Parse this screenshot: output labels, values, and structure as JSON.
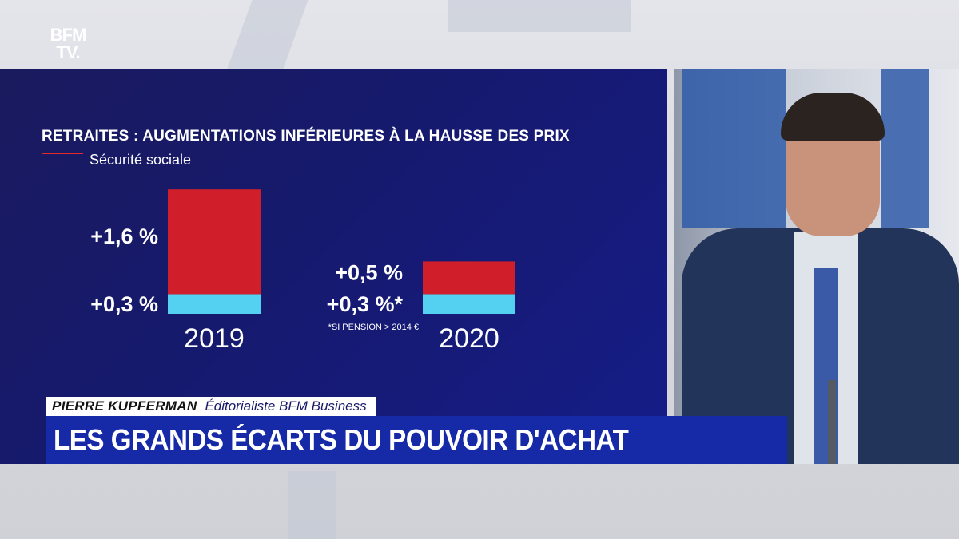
{
  "channel": {
    "logo_line1": "BFM",
    "logo_line2": "TV."
  },
  "chart_data": {
    "type": "bar",
    "title": "RETRAITES : AUGMENTATIONS INFÉRIEURES À LA HAUSSE DES PRIX",
    "legend": [
      {
        "name": "Sécurité sociale",
        "color": "#e42b2b"
      }
    ],
    "categories": [
      "2019",
      "2020"
    ],
    "series": [
      {
        "color": "#54d0f0",
        "values": [
          0.3,
          0.3
        ],
        "labels": [
          "+0,3 %",
          "+0,3 %*"
        ]
      },
      {
        "color": "#d01f2b",
        "values": [
          1.6,
          0.5
        ],
        "labels": [
          "+1,6 %",
          "+0,5 %"
        ]
      }
    ],
    "footnote": "*SI PENSION > 2014 €",
    "stacked": true
  },
  "lower_third": {
    "name": "PIERRE KUPFERMAN",
    "role": "Éditorialiste BFM Business",
    "headline": "LES GRANDS ÉCARTS DU POUVOIR D'ACHAT"
  },
  "colors": {
    "panel_bg": "#161a6e",
    "headline_bg": "#162aa8",
    "accent_red": "#d01f2b",
    "accent_cyan": "#54d0f0"
  }
}
